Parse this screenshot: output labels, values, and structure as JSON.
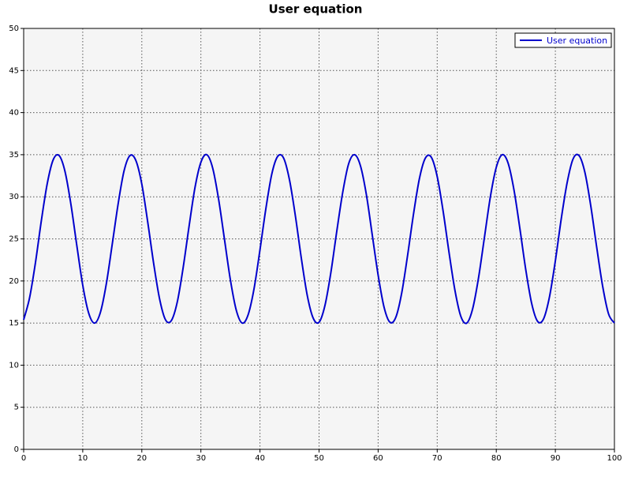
{
  "chart_data": {
    "type": "line",
    "title": "User equation",
    "x": [
      0,
      1,
      2,
      3,
      4,
      5,
      6,
      7,
      8,
      9,
      10,
      11,
      12,
      13,
      14,
      15,
      16,
      17,
      18,
      19,
      20,
      21,
      22,
      23,
      24,
      25,
      26,
      27,
      28,
      29,
      30,
      31,
      32,
      33,
      34,
      35,
      36,
      37,
      38,
      39,
      40,
      41,
      42,
      43,
      44,
      45,
      46,
      47,
      48,
      49,
      50,
      51,
      52,
      53,
      54,
      55,
      56,
      57,
      58,
      59,
      60,
      61,
      62,
      63,
      64,
      65,
      66,
      67,
      68,
      69,
      70,
      71,
      72,
      73,
      74,
      75,
      76,
      77,
      78,
      79,
      80,
      81,
      82,
      83,
      84,
      85,
      86,
      87,
      88,
      89,
      90,
      91,
      92,
      93,
      94,
      95,
      96,
      97,
      98,
      99,
      100
    ],
    "series": [
      {
        "name": "User equation",
        "color": "#0000cc",
        "values": [
          15.4,
          18.0,
          22.2,
          27.2,
          31.6,
          34.4,
          34.9,
          33.0,
          29.1,
          24.2,
          19.5,
          16.2,
          15.0,
          16.3,
          19.7,
          24.4,
          29.2,
          33.1,
          34.9,
          34.3,
          31.5,
          27.0,
          22.1,
          17.9,
          15.4,
          15.3,
          17.5,
          21.6,
          26.5,
          31.1,
          34.1,
          35.0,
          33.4,
          29.7,
          24.9,
          20.1,
          16.5,
          15.0,
          16.0,
          19.1,
          23.7,
          28.6,
          32.7,
          34.8,
          34.6,
          32.0,
          27.7,
          22.7,
          18.3,
          15.6,
          15.1,
          17.1,
          21.0,
          25.9,
          30.5,
          33.9,
          35.0,
          33.7,
          30.3,
          25.5,
          20.7,
          16.9,
          15.1,
          15.7,
          18.6,
          23.1,
          28.0,
          32.2,
          34.6,
          34.7,
          32.4,
          28.3,
          23.4,
          18.9,
          15.8,
          15.0,
          16.7,
          20.4,
          25.2,
          30.0,
          33.5,
          35.0,
          34.0,
          30.8,
          26.2,
          21.3,
          17.3,
          15.2,
          15.5,
          18.1,
          22.4,
          27.4,
          31.7,
          34.5,
          34.9,
          32.9,
          28.9,
          24.0,
          19.4,
          16.1,
          15.0
        ]
      }
    ],
    "xlim": [
      0,
      100
    ],
    "xticks": [
      0,
      10,
      20,
      30,
      40,
      50,
      60,
      70,
      80,
      90,
      100
    ],
    "ylim": [
      0,
      50
    ],
    "yticks": [
      0,
      5,
      10,
      15,
      20,
      25,
      30,
      35,
      40,
      45,
      50
    ],
    "grid": true,
    "legend": "top-right"
  }
}
